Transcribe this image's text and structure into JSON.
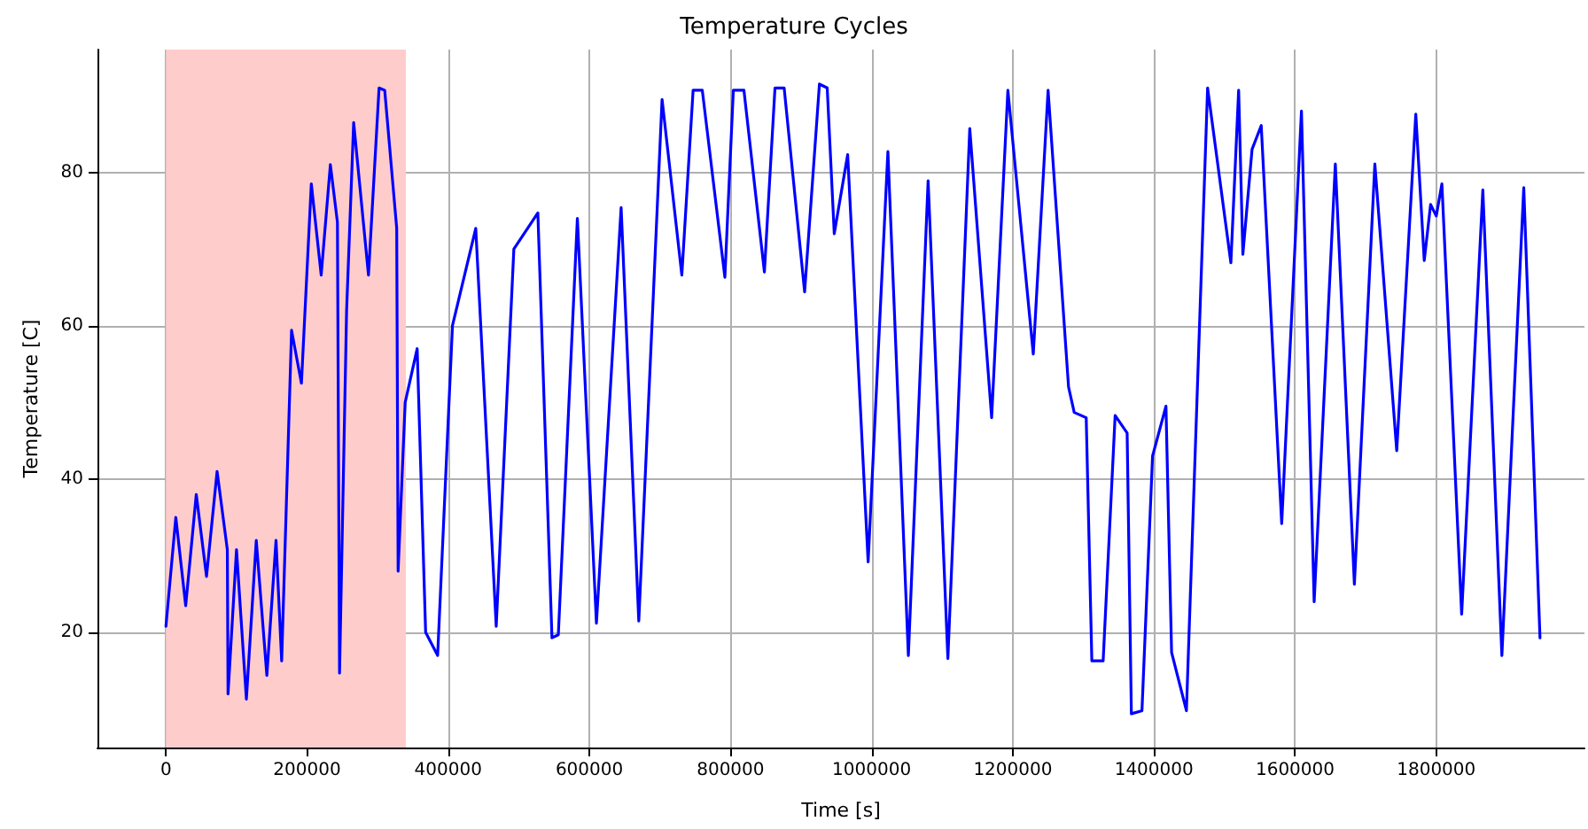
{
  "chart_data": {
    "type": "line",
    "title": "Temperature Cycles",
    "xlabel": "Time [s]",
    "ylabel": "Temperature [C]",
    "x": [
      0,
      14000,
      28000,
      43000,
      57500,
      72500,
      87000,
      88000,
      100000,
      114000,
      128000,
      143000,
      156000,
      164000,
      178000,
      192000,
      206000,
      220000,
      233000,
      243000,
      246000,
      256000,
      266000,
      287000,
      302000,
      310000,
      327000,
      329000,
      339000,
      356000,
      368000,
      385000,
      406000,
      439000,
      468000,
      493000,
      527000,
      547000,
      556000,
      583000,
      610000,
      645000,
      670000,
      703000,
      731000,
      747000,
      760000,
      792000,
      804000,
      819000,
      848000,
      863000,
      876000,
      905000,
      926000,
      937000,
      947000,
      966000,
      995000,
      1023000,
      1052000,
      1080000,
      1108000,
      1139000,
      1170000,
      1193000,
      1229000,
      1250000,
      1279000,
      1287000,
      1304000,
      1312000,
      1328000,
      1345000,
      1362000,
      1368000,
      1383000,
      1398000,
      1417000,
      1425000,
      1446000,
      1476000,
      1509000,
      1520000,
      1526000,
      1539000,
      1552000,
      1581000,
      1609000,
      1627000,
      1657000,
      1684000,
      1713000,
      1744000,
      1771000,
      1783000,
      1792000,
      1800000,
      1808000,
      1836000,
      1866000,
      1893000,
      1924000,
      1947000
    ],
    "series": [
      {
        "color": "#0000ff",
        "values": [
          20.8,
          35,
          23.5,
          38,
          27.3,
          41,
          30.8,
          12,
          30.8,
          11.3,
          32,
          14.4,
          32,
          16.3,
          59.4,
          52.5,
          78.5,
          66.6,
          81,
          73.5,
          14.7,
          62,
          86.5,
          66.6,
          91,
          90.7,
          72.7,
          28,
          50,
          57,
          20,
          17,
          60,
          72.7,
          20.8,
          70,
          74.7,
          19.3,
          19.7,
          74,
          21.2,
          75.4,
          21.5,
          89.5,
          66.6,
          90.7,
          90.7,
          66.3,
          90.7,
          90.7,
          67,
          91,
          91,
          64.4,
          91.5,
          91,
          72,
          82.3,
          29.2,
          82.7,
          17,
          78.9,
          16.6,
          85.7,
          48,
          90.7,
          56.3,
          90.7,
          52,
          48.7,
          48,
          16.3,
          16.3,
          48.3,
          46,
          9.4,
          9.8,
          43,
          49.5,
          17.4,
          9.8,
          91,
          68.2,
          90.7,
          69.3,
          83,
          86.1,
          34.2,
          88,
          24,
          81.1,
          26.3,
          81.1,
          43.7,
          87.6,
          68.5,
          75.8,
          74.3,
          78.5,
          22.4,
          77.7,
          17,
          78,
          19.3
        ]
      }
    ],
    "xlim": [
      -97000,
      2010000
    ],
    "ylim": [
      5,
      96
    ],
    "xticks": [
      0,
      200000,
      400000,
      600000,
      800000,
      1000000,
      1200000,
      1400000,
      1600000,
      1800000
    ],
    "yticks": [
      20,
      40,
      60,
      80
    ],
    "bands": [
      {
        "axis": "x",
        "from": 0,
        "to": 340000,
        "color": "#ffcccc"
      }
    ],
    "grid": true,
    "line_style": "solid"
  }
}
